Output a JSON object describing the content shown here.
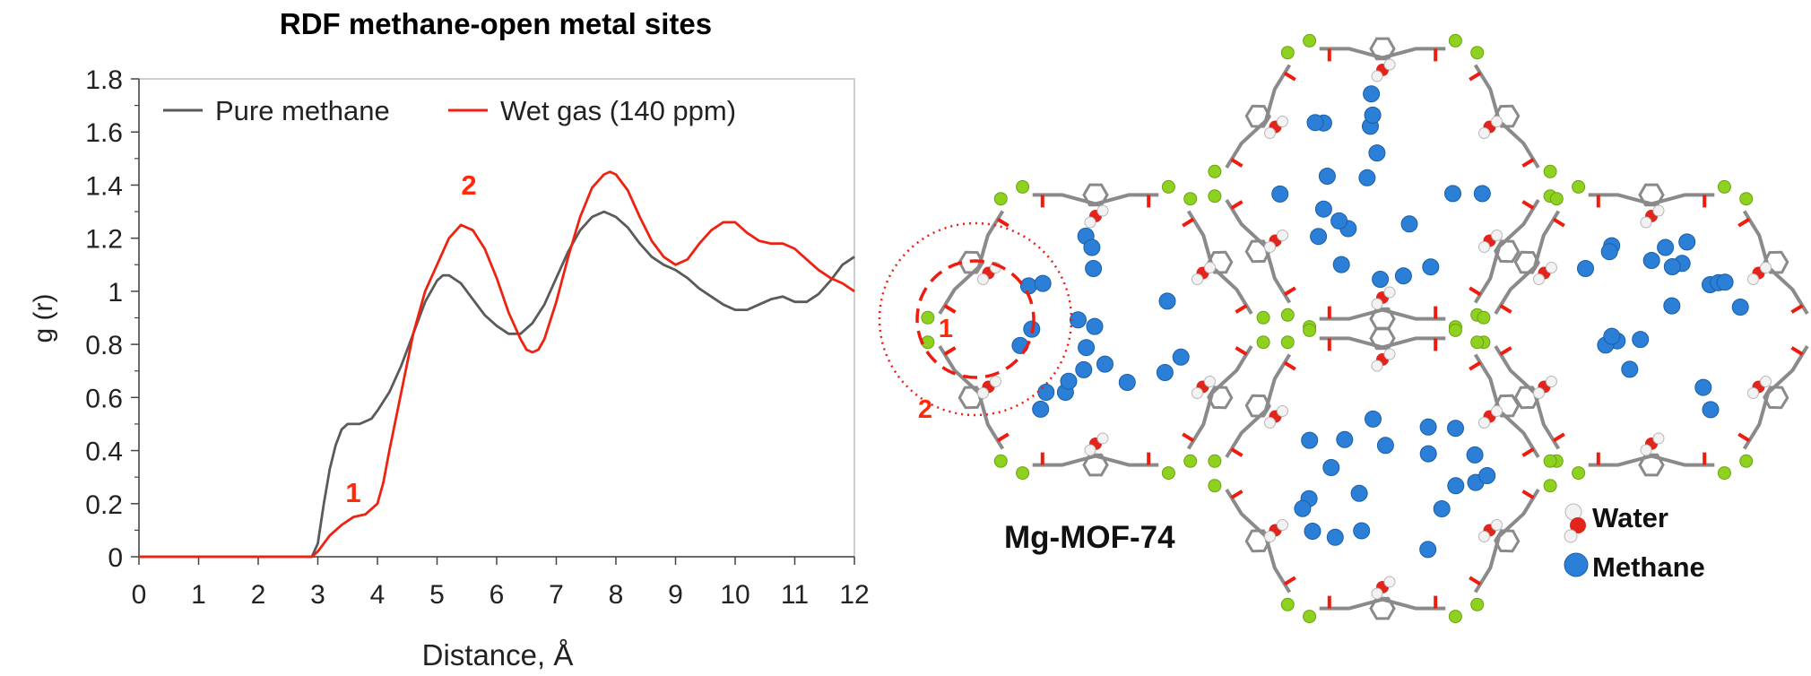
{
  "chart_data": {
    "type": "line",
    "title": "RDF methane-open metal sites",
    "xlabel": "Distance, Å",
    "ylabel": "g (r)",
    "xlim": [
      0,
      12
    ],
    "ylim": [
      0,
      1.8
    ],
    "xticks": [
      "0",
      "1",
      "2",
      "3",
      "4",
      "5",
      "6",
      "7",
      "8",
      "9",
      "10",
      "11",
      "12"
    ],
    "yticks": [
      "0",
      "0.2",
      "0.4",
      "0.6",
      "0.8",
      "1",
      "1.2",
      "1.4",
      "1.6",
      "1.8"
    ],
    "grid": false,
    "legend": "top",
    "series": [
      {
        "name": "Pure methane",
        "color": "#5a5a5a",
        "x": [
          0,
          2.9,
          3.0,
          3.1,
          3.2,
          3.3,
          3.4,
          3.5,
          3.6,
          3.7,
          3.8,
          3.9,
          4.0,
          4.2,
          4.4,
          4.6,
          4.8,
          5.0,
          5.1,
          5.2,
          5.4,
          5.6,
          5.8,
          6.0,
          6.2,
          6.4,
          6.6,
          6.8,
          7.0,
          7.2,
          7.4,
          7.6,
          7.8,
          7.9,
          8.0,
          8.2,
          8.4,
          8.6,
          8.8,
          9.0,
          9.2,
          9.4,
          9.6,
          9.8,
          10.0,
          10.2,
          10.4,
          10.6,
          10.8,
          11.0,
          11.2,
          11.4,
          11.6,
          11.8,
          12.0
        ],
        "y": [
          0,
          0,
          0.05,
          0.2,
          0.33,
          0.42,
          0.48,
          0.5,
          0.5,
          0.5,
          0.51,
          0.52,
          0.55,
          0.62,
          0.72,
          0.84,
          0.96,
          1.04,
          1.06,
          1.06,
          1.03,
          0.97,
          0.91,
          0.87,
          0.84,
          0.84,
          0.88,
          0.95,
          1.05,
          1.15,
          1.23,
          1.28,
          1.3,
          1.29,
          1.28,
          1.24,
          1.18,
          1.13,
          1.1,
          1.08,
          1.05,
          1.01,
          0.98,
          0.95,
          0.93,
          0.93,
          0.95,
          0.97,
          0.98,
          0.96,
          0.96,
          0.99,
          1.04,
          1.1,
          1.13
        ]
      },
      {
        "name": "Wet gas (140 ppm)",
        "color": "#ee2211",
        "x": [
          0,
          2.9,
          3.0,
          3.1,
          3.2,
          3.4,
          3.6,
          3.8,
          4.0,
          4.1,
          4.2,
          4.4,
          4.6,
          4.8,
          5.0,
          5.2,
          5.4,
          5.6,
          5.8,
          6.0,
          6.2,
          6.4,
          6.5,
          6.6,
          6.7,
          6.8,
          7.0,
          7.2,
          7.4,
          7.6,
          7.8,
          7.9,
          8.0,
          8.2,
          8.4,
          8.6,
          8.8,
          9.0,
          9.2,
          9.4,
          9.6,
          9.8,
          10.0,
          10.2,
          10.4,
          10.6,
          10.8,
          11.0,
          11.2,
          11.4,
          11.6,
          11.8,
          12.0
        ],
        "y": [
          0,
          0,
          0.02,
          0.05,
          0.08,
          0.12,
          0.15,
          0.16,
          0.2,
          0.28,
          0.4,
          0.62,
          0.84,
          1.0,
          1.1,
          1.2,
          1.25,
          1.23,
          1.16,
          1.05,
          0.92,
          0.82,
          0.78,
          0.77,
          0.78,
          0.82,
          0.96,
          1.13,
          1.28,
          1.39,
          1.44,
          1.45,
          1.44,
          1.38,
          1.28,
          1.19,
          1.13,
          1.1,
          1.12,
          1.18,
          1.23,
          1.26,
          1.26,
          1.22,
          1.19,
          1.18,
          1.18,
          1.16,
          1.12,
          1.08,
          1.05,
          1.03,
          1.0
        ]
      }
    ],
    "annotations": [
      "1",
      "2"
    ]
  },
  "diagram": {
    "label": "Mg-MOF-74",
    "region_labels": [
      "1",
      "2"
    ],
    "key": [
      {
        "label": "Water",
        "icon": "water-molecule-icon"
      },
      {
        "label": "Methane",
        "icon": "methane-molecule-icon"
      }
    ],
    "colors": {
      "framework": "#8a8a8a",
      "oxygen_link": "#ee1c0e",
      "magnesium": "#8fd11f",
      "methane": "#2b7fd6",
      "water_oxygen": "#e3241b",
      "water_hydrogen": "#f2f2f2"
    }
  }
}
